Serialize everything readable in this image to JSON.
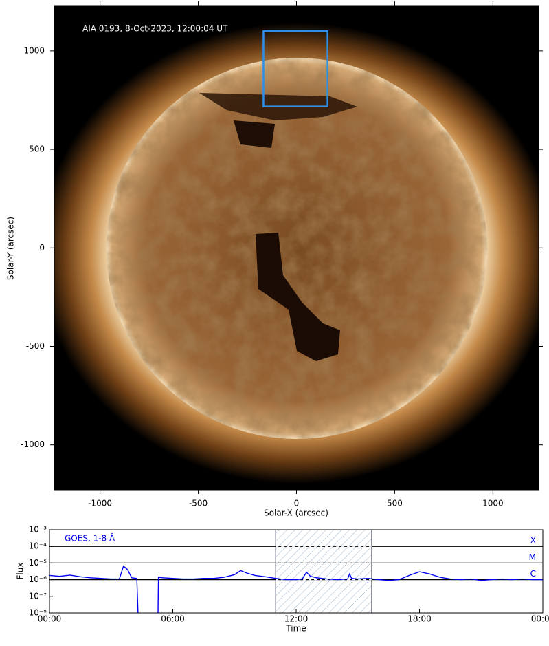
{
  "chart_data": [
    {
      "type": "image",
      "annotation": "AIA 0193, 8-Oct-2023, 12:00:04 UT",
      "xlabel": "Solar-X (arcsec)",
      "ylabel": "Solar-Y (arcsec)",
      "xlim": [
        -1233,
        1233
      ],
      "ylim": [
        -1228,
        1230
      ],
      "xticks": [
        -1000,
        -500,
        0,
        500,
        1000
      ],
      "yticks": [
        -1000,
        -500,
        0,
        500,
        1000
      ],
      "box": {
        "x": [
          -168,
          158
        ],
        "y": [
          718,
          1100
        ],
        "color": "#2f8fe8"
      }
    },
    {
      "type": "line",
      "log_y": true,
      "xlabel": "Time",
      "ylabel": "Flux",
      "xlim": [
        0,
        24
      ],
      "ylim": [
        1e-08,
        0.001
      ],
      "xticks": [
        {
          "value": 0,
          "label": "00:00"
        },
        {
          "value": 6,
          "label": "06:00"
        },
        {
          "value": 12,
          "label": "12:00"
        },
        {
          "value": 18,
          "label": "18:00"
        },
        {
          "value": 24,
          "label": "00:00"
        }
      ],
      "yticks": [
        {
          "value": 1e-08,
          "label": "10⁻⁸"
        },
        {
          "value": 1e-07,
          "label": "10⁻⁷"
        },
        {
          "value": 1e-06,
          "label": "10⁻⁶"
        },
        {
          "value": 1e-05,
          "label": "10⁻⁵"
        },
        {
          "value": 0.0001,
          "label": "10⁻⁴"
        },
        {
          "value": 0.001,
          "label": "10⁻³"
        }
      ],
      "levels": [
        {
          "value": 0.0001,
          "label": "X"
        },
        {
          "value": 1e-05,
          "label": "M"
        },
        {
          "value": 1e-06,
          "label": "C"
        }
      ],
      "highlight": [
        11,
        15.67
      ],
      "x": [
        0,
        0.5,
        1,
        1.5,
        2,
        2.5,
        3,
        3.4,
        3.6,
        3.8,
        4.0,
        4.25,
        4.31,
        4.8,
        5.28,
        5.3,
        5.5,
        6,
        6.5,
        7,
        7.5,
        8,
        8.5,
        9,
        9.3,
        9.6,
        10,
        10.5,
        11,
        11.5,
        12,
        12.3,
        12.5,
        12.7,
        13,
        13.5,
        14,
        14.5,
        14.6,
        14.7,
        15,
        15.5,
        16,
        16.5,
        17,
        17.5,
        18,
        18.5,
        19,
        19.5,
        20,
        20.5,
        21,
        21.5,
        22,
        22.5,
        23,
        23.5,
        24
      ],
      "series": [
        {
          "name": "GOES, 1-8 Å",
          "color": "#0000ee",
          "values": [
            1.8e-06,
            1.6e-06,
            1.9e-06,
            1.5e-06,
            1.3e-06,
            1.2e-06,
            1.1e-06,
            1.1e-06,
            6.5e-06,
            4e-06,
            1.3e-06,
            1.2e-06,
            1e-08,
            null,
            1e-08,
            1.4e-06,
            1.3e-06,
            1.2e-06,
            1.1e-06,
            1.1e-06,
            1.2e-06,
            1.2e-06,
            1.4e-06,
            2e-06,
            3.5e-06,
            2.5e-06,
            1.8e-06,
            1.5e-06,
            1.2e-06,
            1e-06,
            1e-06,
            1.1e-06,
            2.8e-06,
            1.6e-06,
            1.3e-06,
            1.1e-06,
            1e-06,
            1.1e-06,
            2.2e-06,
            1.2e-06,
            1.1e-06,
            1.2e-06,
            1e-06,
            9e-07,
            1e-06,
            1.8e-06,
            3e-06,
            2.2e-06,
            1.4e-06,
            1.1e-06,
            1e-06,
            1.1e-06,
            9e-07,
            1e-06,
            1.1e-06,
            1e-06,
            1.1e-06,
            1e-06,
            1e-06
          ]
        }
      ]
    }
  ]
}
